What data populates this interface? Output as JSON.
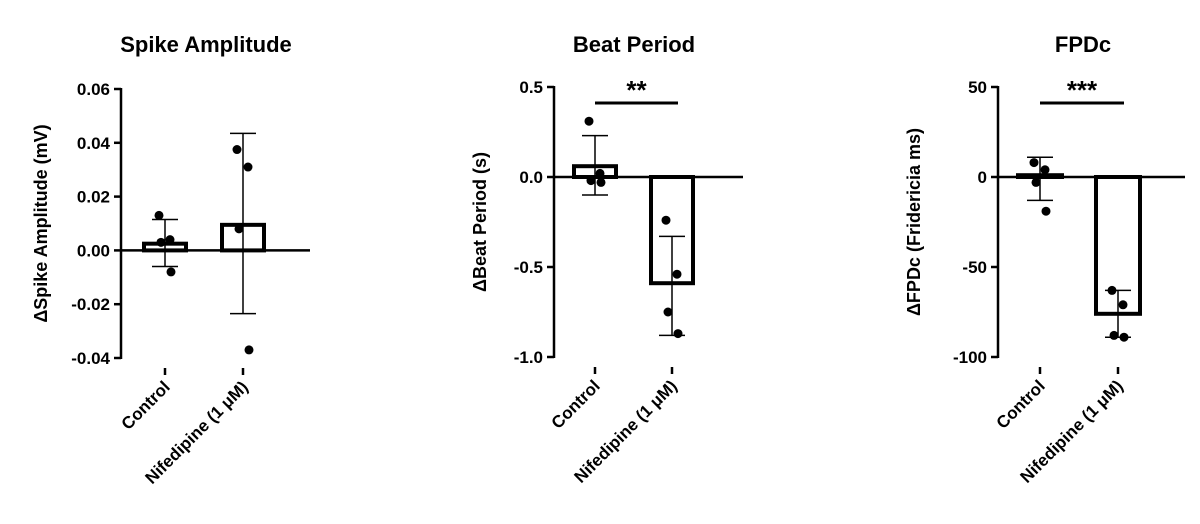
{
  "chart_data": [
    {
      "type": "bar",
      "title": "Spike Amplitude",
      "ylabel": "ΔSpike Amplitude (mV)",
      "ylim": [
        -0.04,
        0.06
      ],
      "yticks": [
        -0.04,
        -0.02,
        0.0,
        0.02,
        0.04,
        0.06
      ],
      "ytick_labels": [
        "-0.04",
        "-0.02",
        "0.00",
        "0.02",
        "0.04",
        "0.06"
      ],
      "categories": [
        "Control",
        "Nifedipine (1 μM)"
      ],
      "values": [
        0.0025,
        0.0095
      ],
      "error_high": [
        0.0115,
        0.0435
      ],
      "error_low": [
        -0.006,
        -0.0235
      ],
      "points": [
        [
          0.013,
          0.004,
          0.003,
          -0.008
        ],
        [
          0.0375,
          0.031,
          0.008,
          -0.037
        ]
      ],
      "significance": ""
    },
    {
      "type": "bar",
      "title": "Beat Period",
      "ylabel": "ΔBeat Period (s)",
      "ylim": [
        -1.0,
        0.5
      ],
      "yticks": [
        -1.0,
        -0.5,
        0.0,
        0.5
      ],
      "ytick_labels": [
        "-1.0",
        "-0.5",
        "0.0",
        "0.5"
      ],
      "categories": [
        "Control",
        "Nifedipine (1 μM)"
      ],
      "values": [
        0.06,
        -0.59
      ],
      "error_high": [
        0.23,
        -0.33
      ],
      "error_low": [
        -0.1,
        -0.88
      ],
      "points": [
        [
          0.31,
          0.02,
          -0.02,
          -0.03
        ],
        [
          -0.24,
          -0.54,
          -0.75,
          -0.87
        ]
      ],
      "significance": "**"
    },
    {
      "type": "bar",
      "title": "FPDc",
      "ylabel": "ΔFPDc (Fridericia ms)",
      "ylim": [
        -100,
        50
      ],
      "yticks": [
        -100,
        -50,
        0,
        50
      ],
      "ytick_labels": [
        "-100",
        "-50",
        "0",
        "50"
      ],
      "categories": [
        "Control",
        "Nifedipine (1 μM)"
      ],
      "values": [
        1,
        -76
      ],
      "error_high": [
        11,
        -63
      ],
      "error_low": [
        -13,
        -89
      ],
      "points": [
        [
          8,
          4,
          -3,
          -19
        ],
        [
          -63,
          -71,
          -88,
          -89
        ]
      ],
      "significance": "***"
    }
  ]
}
